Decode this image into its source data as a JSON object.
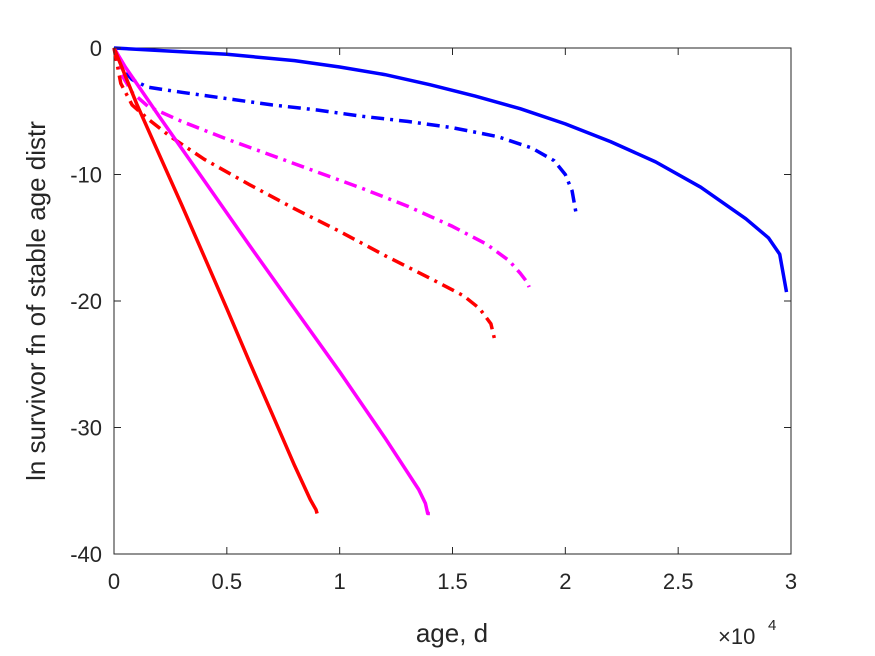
{
  "chart_data": {
    "type": "line",
    "xlabel": "age, d",
    "ylabel": "ln survivor fn of stable age distr",
    "x_exponent_label": "×10",
    "x_exponent_power": "4",
    "xlim": [
      0,
      30000
    ],
    "ylim": [
      -40,
      0
    ],
    "xticks": [
      0,
      5000,
      10000,
      15000,
      20000,
      25000,
      30000
    ],
    "xtick_labels": [
      "0",
      "0.5",
      "1",
      "1.5",
      "2",
      "2.5",
      "3"
    ],
    "yticks": [
      0,
      -10,
      -20,
      -30,
      -40
    ],
    "ytick_labels": [
      "0",
      "-10",
      "-20",
      "-30",
      "-40"
    ],
    "grid": false,
    "series": [
      {
        "color": "#0000ff",
        "style": "solid",
        "x": [
          0,
          2000,
          5000,
          8000,
          10000,
          12000,
          14000,
          16000,
          18000,
          20000,
          22000,
          24000,
          26000,
          28000,
          29000,
          29500,
          29800
        ],
        "y": [
          0,
          -0.2,
          -0.5,
          -1.0,
          -1.5,
          -2.1,
          -2.9,
          -3.8,
          -4.8,
          -6.0,
          -7.4,
          -9.0,
          -11.0,
          -13.5,
          -15.0,
          -16.3,
          -19.3
        ]
      },
      {
        "color": "#0000ff",
        "style": "dashdot",
        "x": [
          0,
          300,
          800,
          1500,
          3000,
          5000,
          7000,
          9000,
          11000,
          13000,
          15000,
          17000,
          18500,
          19500,
          20000,
          20300,
          20500
        ],
        "y": [
          0,
          -1.5,
          -2.5,
          -3.1,
          -3.5,
          -4.0,
          -4.5,
          -4.9,
          -5.4,
          -5.8,
          -6.3,
          -7.0,
          -7.9,
          -8.9,
          -10.0,
          -11.3,
          -13.3
        ]
      },
      {
        "color": "#ff00ff",
        "style": "dashdot",
        "x": [
          0,
          300,
          800,
          1500,
          3000,
          5000,
          7000,
          9000,
          11000,
          13000,
          15000,
          16500,
          17500,
          18000,
          18300,
          18400
        ],
        "y": [
          0,
          -2.0,
          -3.5,
          -4.6,
          -5.8,
          -7.2,
          -8.5,
          -9.8,
          -11.1,
          -12.5,
          -14.1,
          -15.5,
          -16.8,
          -17.8,
          -18.5,
          -18.9
        ]
      },
      {
        "color": "#ff0000",
        "style": "dashdot",
        "x": [
          0,
          300,
          800,
          1500,
          2500,
          4000,
          6000,
          8000,
          10000,
          12000,
          14000,
          15500,
          16200,
          16700,
          16900
        ],
        "y": [
          0,
          -2.8,
          -4.5,
          -5.6,
          -7.0,
          -8.8,
          -10.8,
          -12.7,
          -14.5,
          -16.4,
          -18.2,
          -19.6,
          -20.6,
          -21.8,
          -23.3
        ]
      },
      {
        "color": "#ff00ff",
        "style": "solid",
        "x": [
          0,
          500,
          1000,
          2000,
          4000,
          6000,
          8000,
          10000,
          12000,
          13500,
          13800,
          13900,
          14000
        ],
        "y": [
          0,
          -1.5,
          -2.8,
          -5.4,
          -10.5,
          -15.6,
          -20.6,
          -25.6,
          -30.8,
          -34.9,
          -36.0,
          -36.8,
          -36.8
        ]
      },
      {
        "color": "#ff0000",
        "style": "solid",
        "x": [
          0,
          500,
          1000,
          2000,
          3000,
          4000,
          5000,
          6000,
          7000,
          8000,
          8700,
          8950,
          9000
        ],
        "y": [
          0,
          -2.2,
          -4.4,
          -8.4,
          -12.4,
          -16.5,
          -20.6,
          -24.8,
          -28.9,
          -33.0,
          -35.7,
          -36.5,
          -36.8
        ]
      }
    ]
  }
}
